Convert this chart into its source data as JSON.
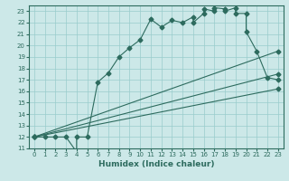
{
  "title": "",
  "xlabel": "Humidex (Indice chaleur)",
  "bg_color": "#cce8e8",
  "line_color": "#2d6b5e",
  "grid_color": "#99cccc",
  "xlim": [
    -0.5,
    23.5
  ],
  "ylim": [
    11,
    23.5
  ],
  "xticks": [
    0,
    1,
    2,
    3,
    4,
    5,
    6,
    7,
    8,
    9,
    10,
    11,
    12,
    13,
    14,
    15,
    16,
    17,
    18,
    19,
    20,
    21,
    22,
    23
  ],
  "yticks": [
    11,
    12,
    13,
    14,
    15,
    16,
    17,
    18,
    19,
    20,
    21,
    22,
    23
  ],
  "curve_x": [
    0,
    1,
    2,
    3,
    4,
    4,
    5,
    6,
    7,
    8,
    9,
    10,
    11,
    12,
    13,
    14,
    15,
    15,
    16,
    16,
    17,
    17,
    18,
    18,
    19,
    19,
    20,
    20,
    21,
    22,
    23
  ],
  "curve_y": [
    12,
    12,
    12,
    12,
    10.7,
    12.0,
    12.0,
    16.8,
    17.6,
    19.0,
    19.8,
    20.5,
    22.3,
    21.6,
    22.2,
    22.0,
    22.5,
    22.0,
    22.8,
    23.2,
    23.0,
    23.3,
    23.2,
    23.0,
    23.3,
    22.8,
    22.8,
    21.2,
    19.5,
    17.2,
    17.0
  ],
  "line2_x": [
    0,
    23
  ],
  "line2_y": [
    12,
    19.5
  ],
  "line3_x": [
    0,
    23
  ],
  "line3_y": [
    12,
    17.5
  ],
  "line4_x": [
    0,
    23
  ],
  "line4_y": [
    12,
    16.2
  ]
}
